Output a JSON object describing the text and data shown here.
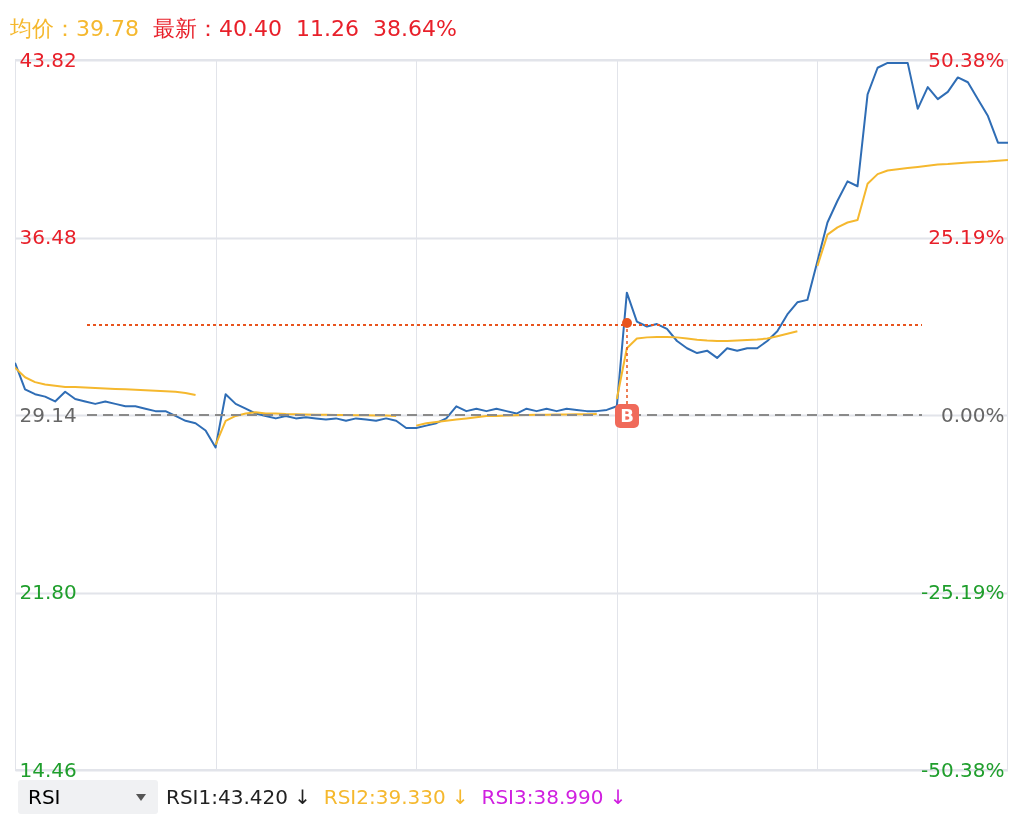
{
  "chart_data": {
    "type": "line",
    "title": "均价：39.78",
    "subtitle": "最新：40.40  11.26  38.64%",
    "categories": [
      null,
      null,
      null,
      null,
      null,
      null,
      null,
      null,
      null,
      null,
      null,
      null,
      null,
      null,
      null,
      null,
      null,
      null,
      null,
      null,
      null,
      null,
      null,
      null,
      null,
      null,
      null,
      null,
      null,
      null,
      null,
      null,
      null,
      null,
      null,
      null,
      null,
      null,
      null,
      null,
      null,
      null,
      null,
      null,
      null,
      null,
      null,
      null,
      null,
      null,
      null,
      null,
      null,
      null,
      null,
      null,
      null,
      null,
      null,
      null,
      null,
      null,
      null,
      null,
      null,
      null,
      null,
      null,
      null,
      null,
      null,
      null,
      null,
      null,
      null,
      null,
      null,
      null,
      null,
      null,
      null,
      null,
      null,
      null,
      null,
      null,
      null,
      null,
      null,
      null,
      null,
      null,
      null,
      null,
      null,
      null,
      null,
      null,
      null,
      null
    ],
    "series": [
      {
        "color": "#2f6db5",
        "values": [
          31.3,
          30.2,
          30.0,
          29.9,
          29.7,
          30.1,
          29.8,
          29.7,
          29.6,
          29.7,
          29.6,
          29.5,
          29.5,
          29.4,
          29.3,
          29.3,
          29.1,
          28.9,
          28.8,
          28.5,
          27.8,
          30.0,
          29.6,
          29.4,
          29.2,
          29.1,
          29.0,
          29.1,
          29.0,
          29.05,
          29.0,
          28.95,
          29.0,
          28.9,
          29.0,
          28.95,
          28.9,
          29.0,
          28.9,
          28.6,
          28.6,
          28.7,
          28.8,
          29.0,
          29.5,
          29.3,
          29.4,
          29.3,
          29.4,
          29.3,
          29.2,
          29.4,
          29.3,
          29.4,
          29.3,
          29.4,
          29.35,
          29.3,
          29.3,
          29.35,
          29.5,
          34.2,
          33.0,
          32.8,
          32.9,
          32.7,
          32.2,
          31.9,
          31.7,
          31.8,
          31.5,
          31.9,
          31.8,
          31.9,
          31.9,
          32.2,
          32.6,
          33.3,
          33.8,
          33.9,
          35.5,
          37.1,
          38.0,
          38.8,
          38.6,
          42.4,
          43.5,
          43.7,
          43.7,
          43.7,
          41.8,
          42.7,
          42.2,
          42.5,
          43.1,
          42.9,
          42.2,
          41.5,
          40.4,
          40.4
        ]
      },
      {
        "color": "#f5b82e",
        "values": [
          31.1,
          30.7,
          30.5,
          30.4,
          30.35,
          30.3,
          30.3,
          30.28,
          30.26,
          30.24,
          30.22,
          30.2,
          30.18,
          30.16,
          30.14,
          30.12,
          30.1,
          30.05,
          29.97,
          null,
          27.9,
          28.9,
          29.1,
          29.2,
          29.25,
          29.2,
          29.2,
          29.18,
          29.17,
          29.16,
          29.15,
          29.15,
          29.14,
          29.14,
          29.13,
          29.13,
          29.12,
          29.12,
          29.1,
          null,
          28.7,
          28.8,
          28.85,
          28.9,
          28.95,
          29.0,
          29.05,
          29.1,
          29.1,
          29.12,
          29.13,
          29.14,
          29.15,
          29.15,
          29.16,
          29.16,
          29.17,
          29.17,
          29.18,
          null,
          29.8,
          31.9,
          32.3,
          32.35,
          32.37,
          32.37,
          32.35,
          32.3,
          32.25,
          32.22,
          32.2,
          32.2,
          32.22,
          32.24,
          32.26,
          32.3,
          32.4,
          32.5,
          32.6,
          null,
          35.3,
          36.6,
          36.9,
          37.1,
          37.2,
          38.7,
          39.1,
          39.25,
          39.3,
          39.35,
          39.4,
          39.45,
          39.5,
          39.52,
          39.55,
          39.58,
          39.6,
          39.62,
          39.65,
          39.68
        ]
      }
    ],
    "ylim": [
      14.46,
      43.82
    ],
    "yticks": [
      14.46,
      {
        "value": 21.8,
        "label": "21.80"
      },
      29.14,
      36.48,
      43.82
    ],
    "y2lim": [
      -50.38,
      50.38
    ],
    "y2ticks": [
      {
        "value": -50.38,
        "label": "-50.38%"
      },
      {
        "value": -25.19,
        "label": "-25.19%"
      },
      {
        "value": 0,
        "label": "0.00%"
      },
      {
        "value": 25.19,
        "label": "25.19%"
      },
      {
        "value": 50.38,
        "label": "50.38%"
      }
    ],
    "ref_lines": [
      {
        "axis": "y",
        "value": 29.14,
        "color": "#8a8a8a",
        "line_style": "dashed"
      },
      {
        "axis": "y",
        "value": 32.86,
        "color": "#e8541e",
        "line_style": "dotted"
      }
    ],
    "grid": true,
    "tick_labels": "y",
    "annotations": [
      "B",
      "RSI",
      "RSI1:43.420 ↓",
      "RSI2:39.330 ↓",
      "RSI3:38.990 ↓"
    ]
  }
}
